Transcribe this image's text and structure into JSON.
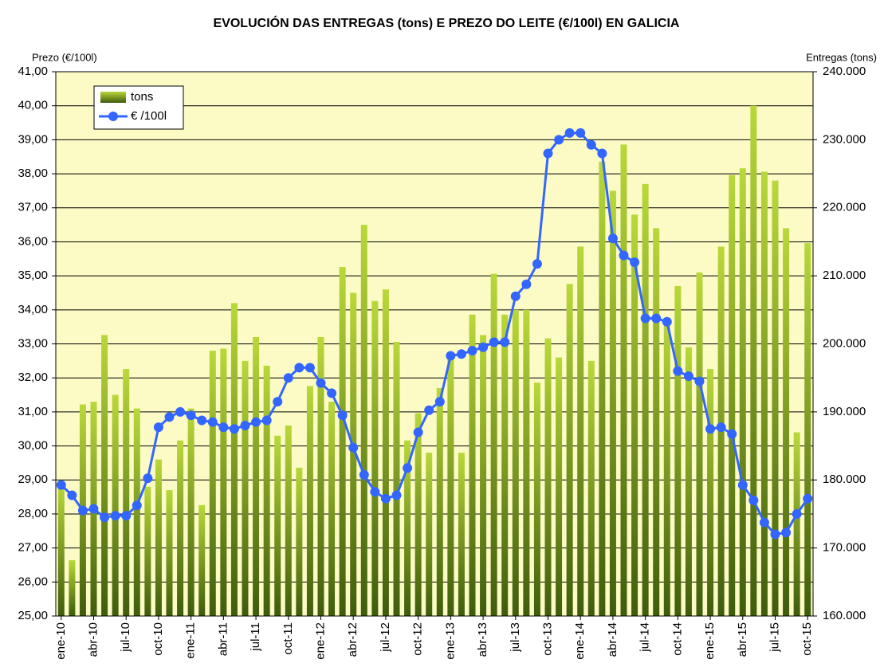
{
  "chart_data": {
    "type": "combo",
    "title": "EVOLUCIÓN DAS ENTREGAS (tons) E PREZO DO LEITE (€/100l) EN GALICIA",
    "y_label": "Prezo (€/100l)",
    "y2_label": "Entregas (tons)",
    "categories": [
      "ene-10",
      null,
      null,
      "abr-10",
      null,
      null,
      "jul-10",
      null,
      null,
      "oct-10",
      null,
      null,
      "ene-11",
      null,
      null,
      "abr-11",
      null,
      null,
      "jul-11",
      null,
      null,
      "oct-11",
      null,
      null,
      "ene-12",
      null,
      null,
      "abr-12",
      null,
      null,
      "jul-12",
      null,
      null,
      "oct-12",
      null,
      null,
      "ene-13",
      null,
      null,
      "abr-13",
      null,
      null,
      "jul-13",
      null,
      null,
      "oct-13",
      null,
      null,
      "ene-14",
      null,
      null,
      "abr-14",
      null,
      null,
      "jul-14",
      null,
      null,
      "oct-14",
      null,
      null,
      "ene-15",
      null,
      null,
      "abr-15",
      null,
      null,
      "jul-15",
      null,
      null,
      "oct-15"
    ],
    "series": [
      {
        "name": "tons",
        "type": "bar",
        "axis": "y2",
        "color": "#8db024",
        "values": [
          179500,
          168200,
          191100,
          191500,
          201300,
          192500,
          196300,
          190500,
          179000,
          183000,
          178500,
          185800,
          190500,
          176300,
          199000,
          199300,
          206000,
          197500,
          201000,
          196800,
          186500,
          188000,
          181800,
          193800,
          201000,
          191500,
          211300,
          207500,
          217500,
          206300,
          208000,
          200300,
          185800,
          189800,
          184000,
          193500,
          198500,
          184000,
          204300,
          201300,
          210300,
          204300,
          205000,
          205000,
          194300,
          200800,
          198000,
          208800,
          214300,
          197500,
          226800,
          222500,
          229300,
          219000,
          223500,
          217000,
          203500,
          208500,
          199500,
          210500,
          196300,
          214300,
          224800,
          225800,
          235000,
          225300,
          224000,
          217000,
          187000,
          214800
        ]
      },
      {
        "name": "€ /100l",
        "type": "line",
        "color": "#3366ff",
        "values": [
          28.85,
          28.55,
          28.1,
          28.15,
          27.9,
          27.95,
          27.95,
          28.25,
          29.05,
          30.55,
          30.85,
          31.0,
          30.9,
          30.75,
          30.7,
          30.55,
          30.5,
          30.6,
          30.7,
          30.75,
          31.3,
          32.0,
          32.3,
          32.3,
          31.85,
          31.55,
          30.9,
          29.95,
          29.15,
          28.65,
          28.45,
          28.55,
          29.35,
          30.4,
          31.05,
          31.3,
          32.65,
          32.7,
          32.8,
          32.9,
          33.05,
          33.05,
          34.4,
          34.75,
          35.35,
          38.6,
          39.0,
          39.2,
          39.2,
          38.85,
          38.6,
          36.1,
          35.6,
          35.4,
          33.75,
          33.75,
          33.65,
          32.2,
          32.05,
          31.9,
          30.5,
          30.55,
          30.35,
          28.85,
          28.4,
          27.75,
          27.4,
          27.45,
          28.0,
          28.45
        ]
      }
    ],
    "ylim": [
      25,
      41
    ],
    "yticks": [
      {
        "value": 25,
        "label": "25,00"
      },
      {
        "value": 26,
        "label": "26,00"
      },
      {
        "value": 27,
        "label": "27,00"
      },
      {
        "value": 28,
        "label": "28,00"
      },
      {
        "value": 29,
        "label": "29,00"
      },
      {
        "value": 30,
        "label": "30,00"
      },
      {
        "value": 31,
        "label": "31,00"
      },
      {
        "value": 32,
        "label": "32,00"
      },
      {
        "value": 33,
        "label": "33,00"
      },
      {
        "value": 34,
        "label": "34,00"
      },
      {
        "value": 35,
        "label": "35,00"
      },
      {
        "value": 36,
        "label": "36,00"
      },
      {
        "value": 37,
        "label": "37,00"
      },
      {
        "value": 38,
        "label": "38,00"
      },
      {
        "value": 39,
        "label": "39,00"
      },
      {
        "value": 40,
        "label": "40,00"
      },
      {
        "value": 41,
        "label": "41,00"
      }
    ],
    "y2lim": [
      160000,
      240000
    ],
    "y2ticks": [
      {
        "value": 160000,
        "label": "160.000"
      },
      {
        "value": 170000,
        "label": "170.000"
      },
      {
        "value": 180000,
        "label": "180.000"
      },
      {
        "value": 190000,
        "label": "190.000"
      },
      {
        "value": 200000,
        "label": "200.000"
      },
      {
        "value": 210000,
        "label": "210.000"
      },
      {
        "value": 220000,
        "label": "220.000"
      },
      {
        "value": 230000,
        "label": "230.000"
      },
      {
        "value": 240000,
        "label": "240.000"
      }
    ],
    "grid": true,
    "legend": "top-left",
    "plot_background": "#fcfbc6"
  }
}
